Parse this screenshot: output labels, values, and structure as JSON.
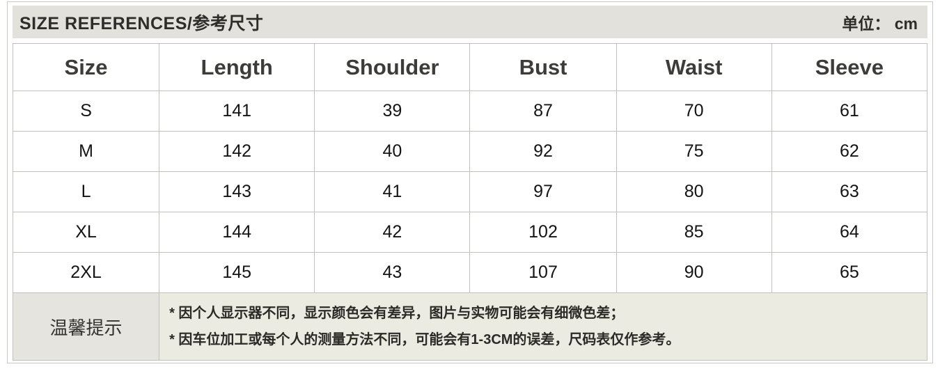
{
  "header": {
    "title": "SIZE REFERENCES/参考尺寸",
    "unit": "单位： cm"
  },
  "table": {
    "columns": [
      "Size",
      "Length",
      "Shoulder",
      "Bust",
      "Waist",
      "Sleeve"
    ],
    "rows": [
      [
        "S",
        "141",
        "39",
        "87",
        "70",
        "61"
      ],
      [
        "M",
        "142",
        "40",
        "92",
        "75",
        "62"
      ],
      [
        "L",
        "143",
        "41",
        "97",
        "80",
        "63"
      ],
      [
        "XL",
        "144",
        "42",
        "102",
        "85",
        "64"
      ],
      [
        "2XL",
        "145",
        "43",
        "107",
        "90",
        "65"
      ]
    ]
  },
  "notes": {
    "label": "温馨提示",
    "lines": [
      "* 因个人显示器不同，显示颜色会有差异，图片与实物可能会有细微色差；",
      "* 因车位加工或每个人的测量方法不同，可能会有1-3CM的误差，尺码表仅作参考。"
    ]
  },
  "colors": {
    "title_bar_bg": "#e3e1db",
    "tips_cell_bg": "#e6e4de",
    "notes_cell_bg": "#ecebe1",
    "table_border": "#c2c0bc",
    "text_dark": "#141414"
  }
}
